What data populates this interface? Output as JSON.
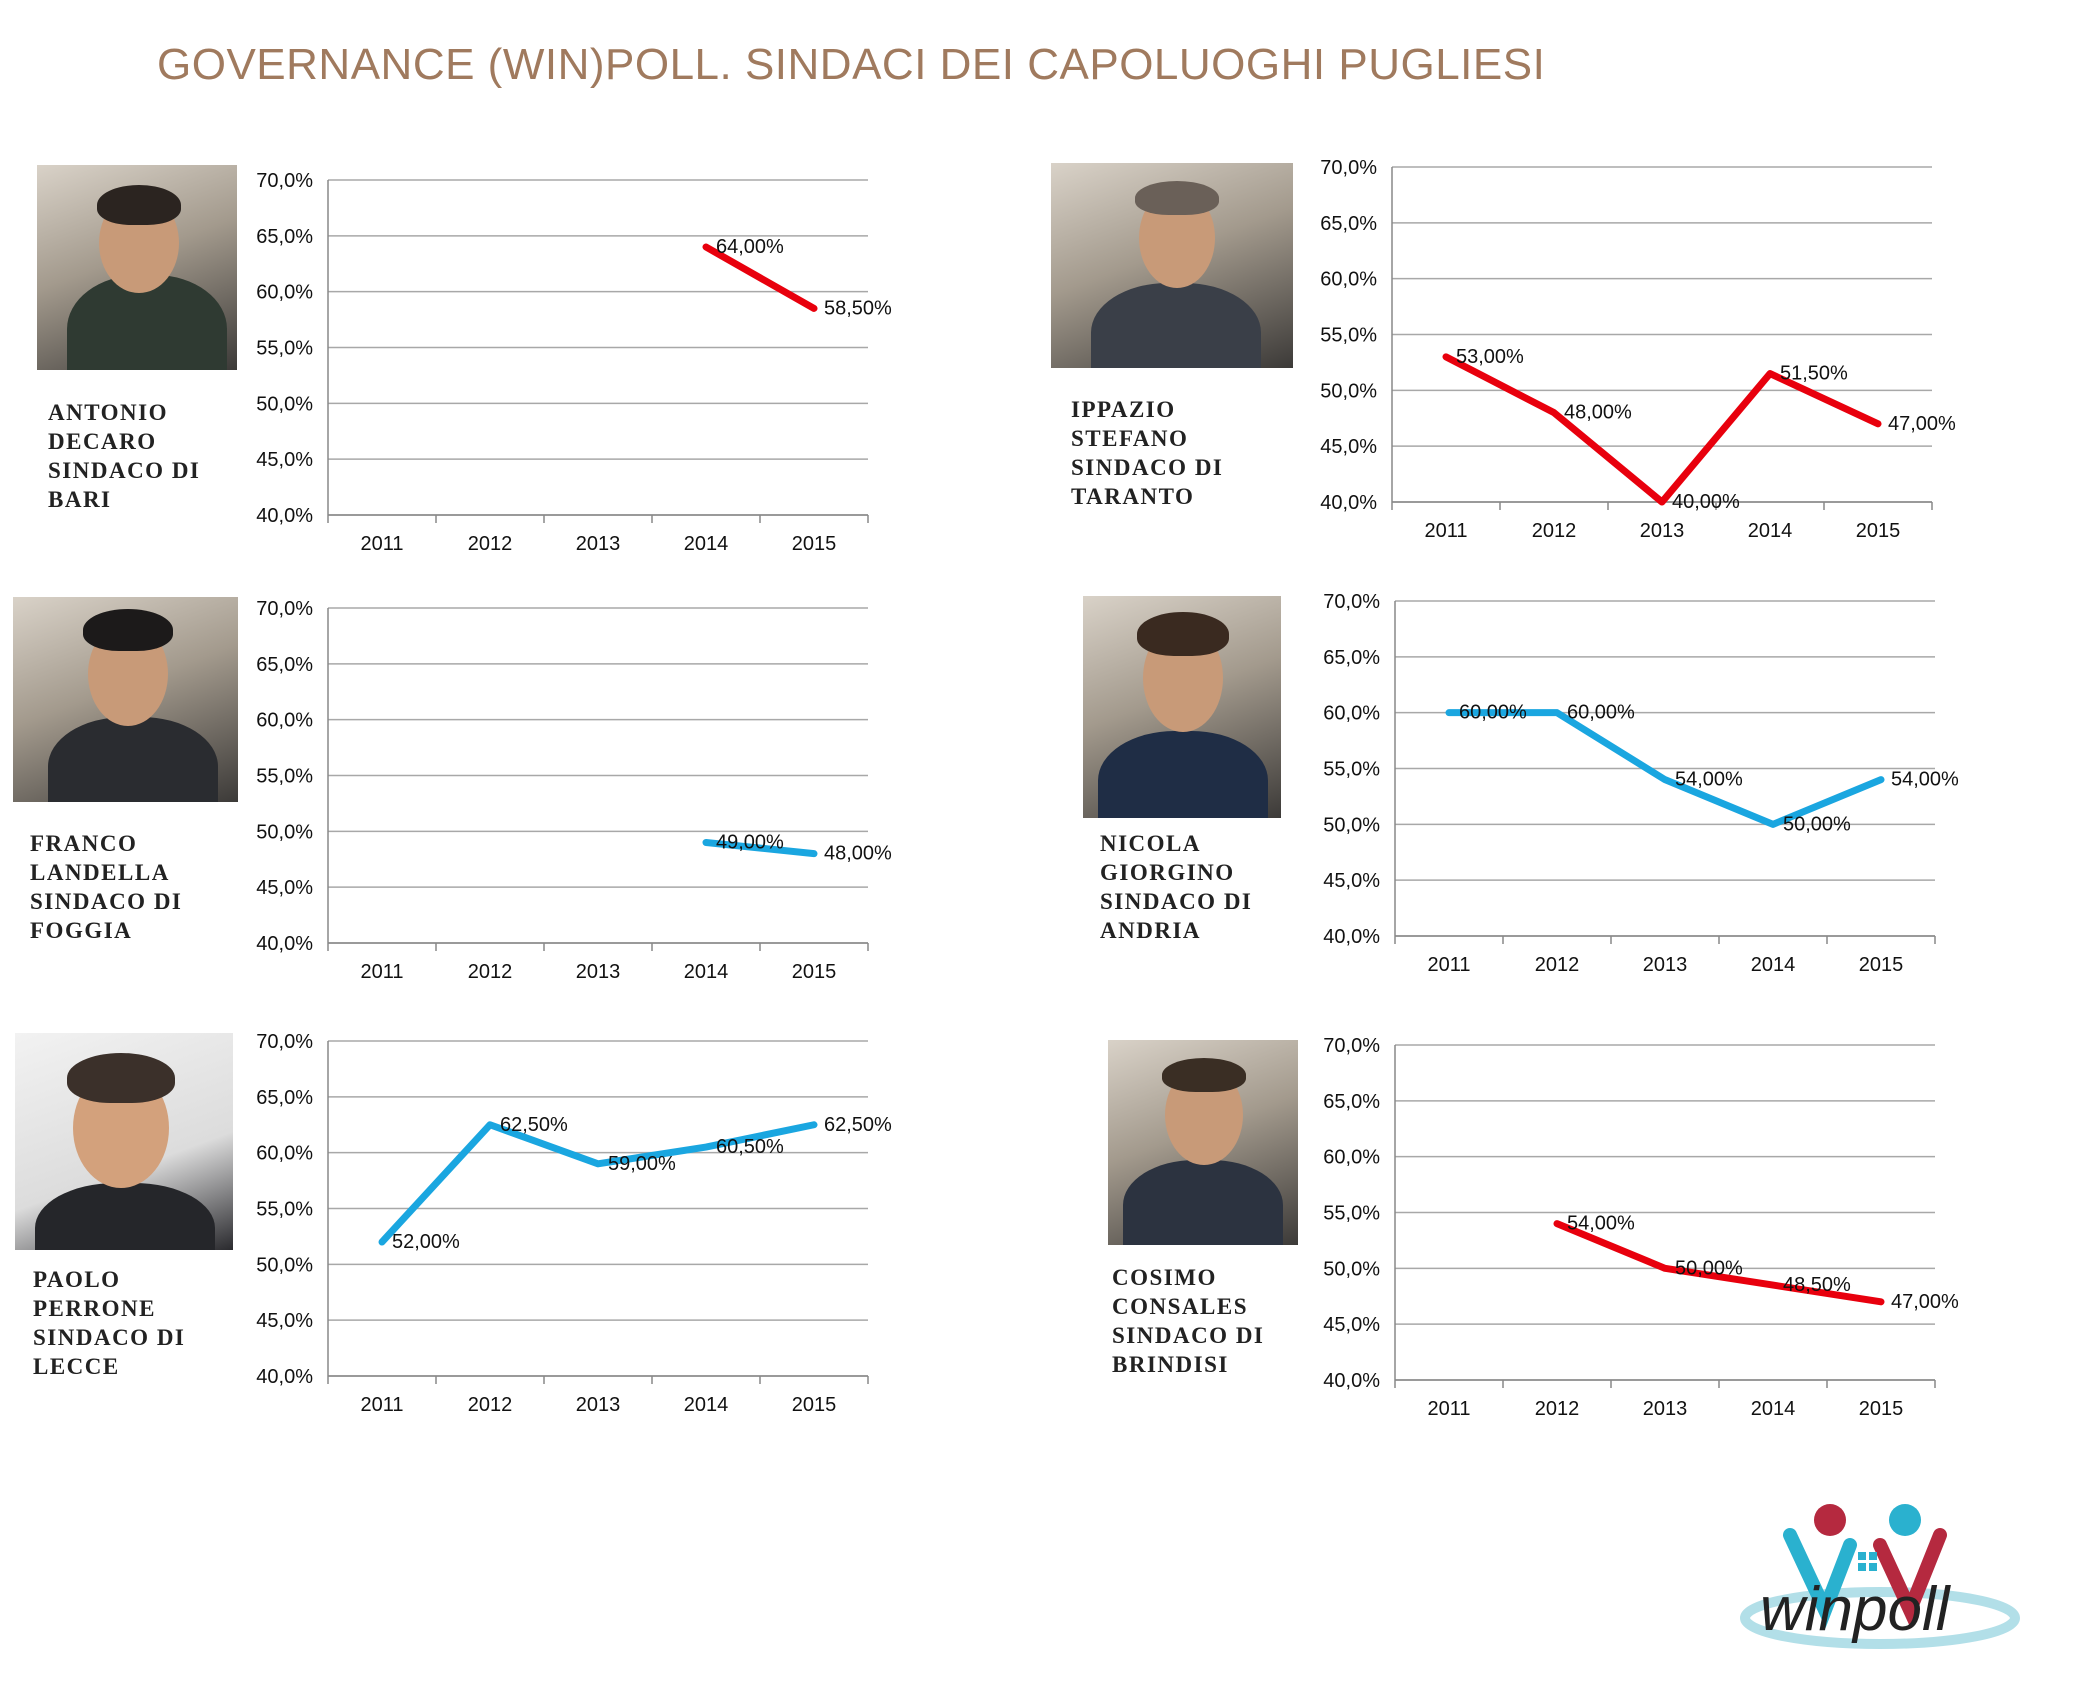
{
  "title": "GOVERNANCE (WIN)POLL. SINDACI DEI CAPOLUOGHI PUGLIESI",
  "logo_text": "winpoll",
  "colors": {
    "red": "#e8000d",
    "blue": "#1aa6e0",
    "title": "#a07a5e"
  },
  "mayors": [
    {
      "id": "bari",
      "name_lines": [
        "ANTONIO",
        "DECARO",
        "SINDACO DI",
        "BARI"
      ]
    },
    {
      "id": "taranto",
      "name_lines": [
        "IPPAZIO",
        "STEFANO",
        "SINDACO DI",
        "TARANTO"
      ]
    },
    {
      "id": "foggia",
      "name_lines": [
        "FRANCO",
        "LANDELLA",
        "SINDACO DI",
        "FOGGIA"
      ]
    },
    {
      "id": "andria",
      "name_lines": [
        "NICOLA",
        "GIORGINO",
        "SINDACO DI",
        "ANDRIA"
      ]
    },
    {
      "id": "lecce",
      "name_lines": [
        "PAOLO",
        "PERRONE",
        "SINDACO DI",
        "LECCE"
      ]
    },
    {
      "id": "brindisi",
      "name_lines": [
        "COSIMO",
        "CONSALES",
        "SINDACO DI",
        "BRINDISI"
      ]
    }
  ],
  "chart_data": [
    {
      "id": "bari",
      "type": "line",
      "categories": [
        "2011",
        "2012",
        "2013",
        "2014",
        "2015"
      ],
      "yticks": [
        "70,0%",
        "65,0%",
        "60,0%",
        "55,0%",
        "50,0%",
        "45,0%",
        "40,0%"
      ],
      "ylim": [
        40,
        70
      ],
      "grid": true,
      "series": [
        {
          "color": "red",
          "values": [
            null,
            null,
            null,
            64.0,
            58.5
          ],
          "labels": [
            null,
            null,
            null,
            "64,00%",
            "58,50%"
          ]
        }
      ]
    },
    {
      "id": "taranto",
      "type": "line",
      "categories": [
        "2011",
        "2012",
        "2013",
        "2014",
        "2015"
      ],
      "yticks": [
        "70,0%",
        "65,0%",
        "60,0%",
        "55,0%",
        "50,0%",
        "45,0%",
        "40,0%"
      ],
      "ylim": [
        40,
        70
      ],
      "grid": true,
      "series": [
        {
          "color": "red",
          "values": [
            53.0,
            48.0,
            40.0,
            51.5,
            47.0
          ],
          "labels": [
            "53,00%",
            "48,00%",
            "40,00%",
            "51,50%",
            "47,00%"
          ]
        }
      ]
    },
    {
      "id": "foggia",
      "type": "line",
      "categories": [
        "2011",
        "2012",
        "2013",
        "2014",
        "2015"
      ],
      "yticks": [
        "70,0%",
        "65,0%",
        "60,0%",
        "55,0%",
        "50,0%",
        "45,0%",
        "40,0%"
      ],
      "ylim": [
        40,
        70
      ],
      "grid": true,
      "series": [
        {
          "color": "blue",
          "values": [
            null,
            null,
            null,
            49.0,
            48.0
          ],
          "labels": [
            null,
            null,
            null,
            "49,00%",
            "48,00%"
          ]
        }
      ]
    },
    {
      "id": "andria",
      "type": "line",
      "categories": [
        "2011",
        "2012",
        "2013",
        "2014",
        "2015"
      ],
      "yticks": [
        "70,0%",
        "65,0%",
        "60,0%",
        "55,0%",
        "50,0%",
        "45,0%",
        "40,0%"
      ],
      "ylim": [
        40,
        70
      ],
      "grid": true,
      "series": [
        {
          "color": "blue",
          "values": [
            60.0,
            60.0,
            54.0,
            50.0,
            54.0
          ],
          "labels": [
            "60,00%",
            "60,00%",
            "54,00%",
            "50,00%",
            "54,00%"
          ]
        }
      ]
    },
    {
      "id": "lecce",
      "type": "line",
      "categories": [
        "2011",
        "2012",
        "2013",
        "2014",
        "2015"
      ],
      "yticks": [
        "70,0%",
        "65,0%",
        "60,0%",
        "55,0%",
        "50,0%",
        "45,0%",
        "40,0%"
      ],
      "ylim": [
        40,
        70
      ],
      "grid": true,
      "series": [
        {
          "color": "blue",
          "values": [
            52.0,
            62.5,
            59.0,
            60.5,
            62.5
          ],
          "labels": [
            "52,00%",
            "62,50%",
            "59,00%",
            "60,50%",
            "62,50%"
          ]
        }
      ]
    },
    {
      "id": "brindisi",
      "type": "line",
      "categories": [
        "2011",
        "2012",
        "2013",
        "2014",
        "2015"
      ],
      "yticks": [
        "70,0%",
        "65,0%",
        "60,0%",
        "55,0%",
        "50,0%",
        "45,0%",
        "40,0%"
      ],
      "ylim": [
        40,
        70
      ],
      "grid": true,
      "series": [
        {
          "color": "red",
          "values": [
            null,
            54.0,
            50.0,
            48.5,
            47.0
          ],
          "labels": [
            null,
            "54,00%",
            "50,00%",
            "48,50%",
            "47,00%"
          ]
        }
      ]
    }
  ]
}
